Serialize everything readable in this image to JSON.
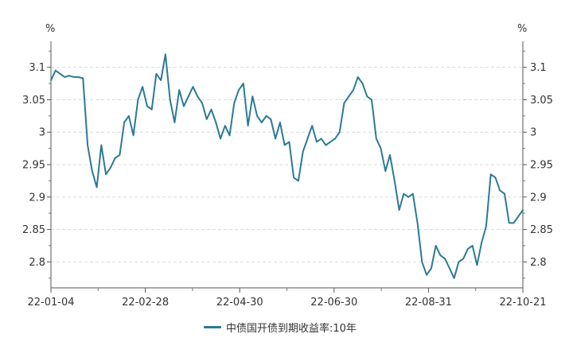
{
  "chart_data": {
    "type": "line",
    "title": "",
    "y_unit_left": "%",
    "y_unit_right": "%",
    "ylim": [
      2.76,
      3.14
    ],
    "yticks": [
      2.8,
      2.85,
      2.9,
      2.95,
      3,
      3.05,
      3.1
    ],
    "ytick_labels": [
      "2.8",
      "2.85",
      "2.9",
      "2.95",
      "3",
      "3.05",
      "3.1"
    ],
    "xticks": [
      "22-01-04",
      "22-02-28",
      "22-04-30",
      "22-06-30",
      "22-08-31",
      "22-10-21"
    ],
    "grid": "horizontal-dashed",
    "legend_position": "bottom-center",
    "color": "#2b7a94",
    "series": [
      {
        "name": "中债国开债到期收益率:10年",
        "values": [
          3.08,
          3.095,
          3.09,
          3.085,
          3.087,
          3.085,
          3.085,
          3.083,
          2.98,
          2.94,
          2.915,
          2.98,
          2.935,
          2.945,
          2.96,
          2.965,
          3.015,
          3.025,
          2.995,
          3.05,
          3.07,
          3.04,
          3.035,
          3.09,
          3.08,
          3.12,
          3.05,
          3.015,
          3.065,
          3.04,
          3.055,
          3.07,
          3.055,
          3.045,
          3.02,
          3.035,
          3.015,
          2.99,
          3.01,
          2.995,
          3.045,
          3.065,
          3.075,
          3.01,
          3.055,
          3.025,
          3.015,
          3.025,
          3.02,
          2.99,
          3.015,
          2.98,
          2.985,
          2.93,
          2.925,
          2.97,
          2.99,
          3.01,
          2.985,
          2.99,
          2.98,
          2.985,
          2.99,
          3.0,
          3.045,
          3.055,
          3.065,
          3.085,
          3.075,
          3.055,
          3.05,
          2.99,
          2.975,
          2.94,
          2.965,
          2.925,
          2.88,
          2.905,
          2.9,
          2.905,
          2.86,
          2.8,
          2.78,
          2.79,
          2.825,
          2.81,
          2.805,
          2.79,
          2.775,
          2.8,
          2.805,
          2.82,
          2.825,
          2.795,
          2.83,
          2.855,
          2.935,
          2.93,
          2.91,
          2.905,
          2.86,
          2.86,
          2.87,
          2.88
        ]
      }
    ]
  }
}
